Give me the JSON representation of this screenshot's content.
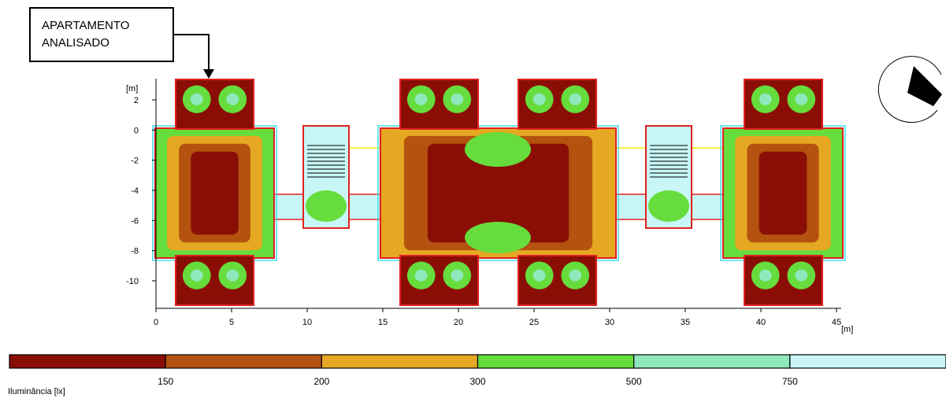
{
  "callout": [
    "APARTAMENTO",
    "ANALISADO"
  ],
  "plan": {
    "x_unit": "[m]",
    "y_unit": "[m]",
    "xticks": [
      0,
      5,
      10,
      15,
      20,
      25,
      30,
      35,
      40,
      45
    ],
    "yticks": [
      2,
      0,
      -2,
      -4,
      -6,
      -8,
      -10
    ]
  },
  "legend": {
    "title": "Iluminância [lx]",
    "labels": [
      150,
      200,
      300,
      500,
      750
    ],
    "colors": [
      "#8a0e06",
      "#b4520f",
      "#e6a822",
      "#66dd3c",
      "#8fe8bb",
      "#c8f6f6"
    ]
  }
}
